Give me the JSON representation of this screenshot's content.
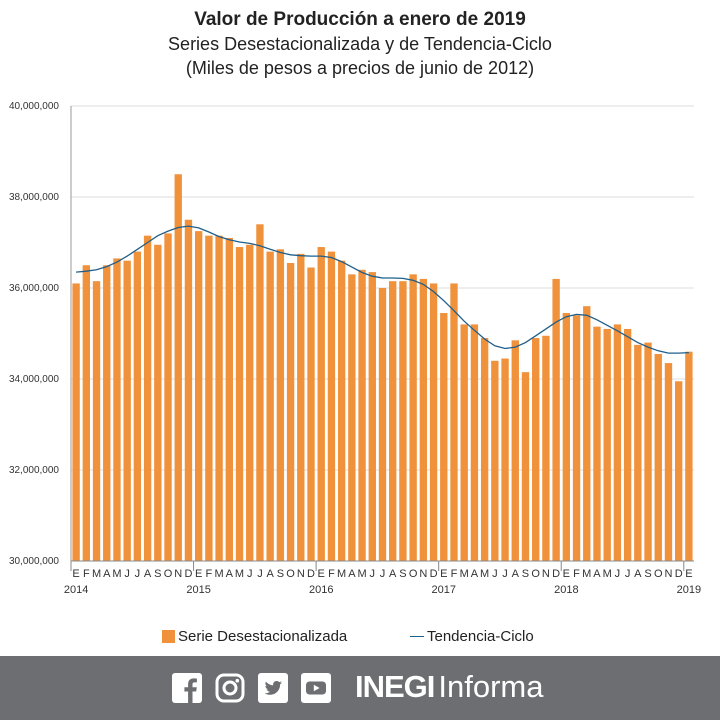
{
  "header": {
    "title": "Valor de Producción a enero de 2019",
    "subtitle1": "Series Desestacionalizada y de Tendencia-Ciclo",
    "subtitle2": "(Miles de pesos a precios de junio de 2012)"
  },
  "legend": {
    "bar_label": "Serie Desestacionalizada",
    "line_label": "Tendencia-Ciclo"
  },
  "footer": {
    "brand_bold": "INEGI",
    "brand_regular": "Informa",
    "icons": [
      "facebook-icon",
      "instagram-icon",
      "twitter-icon",
      "youtube-icon"
    ]
  },
  "colors": {
    "bar": "#f0913b",
    "line": "#1f5f8b",
    "footer_bg": "#6d6e71"
  },
  "chart_data": {
    "type": "bar",
    "ylim": [
      30000000,
      40000000
    ],
    "yticks": [
      30000000,
      32000000,
      34000000,
      36000000,
      38000000,
      40000000
    ],
    "ytick_labels": [
      "30,000,000",
      "32,000,000",
      "34,000,000",
      "36,000,000",
      "38,000,000",
      "40,000,000"
    ],
    "month_labels": [
      "E",
      "F",
      "M",
      "A",
      "M",
      "J",
      "J",
      "A",
      "S",
      "O",
      "N",
      "D"
    ],
    "year_labels": [
      {
        "index": 0,
        "label": "2014"
      },
      {
        "index": 12,
        "label": "2015"
      },
      {
        "index": 24,
        "label": "2016"
      },
      {
        "index": 36,
        "label": "2017"
      },
      {
        "index": 48,
        "label": "2018"
      },
      {
        "index": 60,
        "label": "2019"
      }
    ],
    "categories": [
      "2014-01",
      "2014-02",
      "2014-03",
      "2014-04",
      "2014-05",
      "2014-06",
      "2014-07",
      "2014-08",
      "2014-09",
      "2014-10",
      "2014-11",
      "2014-12",
      "2015-01",
      "2015-02",
      "2015-03",
      "2015-04",
      "2015-05",
      "2015-06",
      "2015-07",
      "2015-08",
      "2015-09",
      "2015-10",
      "2015-11",
      "2015-12",
      "2016-01",
      "2016-02",
      "2016-03",
      "2016-04",
      "2016-05",
      "2016-06",
      "2016-07",
      "2016-08",
      "2016-09",
      "2016-10",
      "2016-11",
      "2016-12",
      "2017-01",
      "2017-02",
      "2017-03",
      "2017-04",
      "2017-05",
      "2017-06",
      "2017-07",
      "2017-08",
      "2017-09",
      "2017-10",
      "2017-11",
      "2017-12",
      "2018-01",
      "2018-02",
      "2018-03",
      "2018-04",
      "2018-05",
      "2018-06",
      "2018-07",
      "2018-08",
      "2018-09",
      "2018-10",
      "2018-11",
      "2018-12",
      "2019-01"
    ],
    "series": [
      {
        "name": "Serie Desestacionalizada",
        "type": "bar",
        "values": [
          36100000,
          36500000,
          36150000,
          36500000,
          36650000,
          36600000,
          36800000,
          37150000,
          36950000,
          37200000,
          38500000,
          37500000,
          37250000,
          37150000,
          37150000,
          37100000,
          36900000,
          36950000,
          37400000,
          36800000,
          36850000,
          36550000,
          36750000,
          36450000,
          36900000,
          36800000,
          36600000,
          36300000,
          36400000,
          36350000,
          36000000,
          36150000,
          36150000,
          36300000,
          36200000,
          36100000,
          35450000,
          36100000,
          35200000,
          35200000,
          34900000,
          34400000,
          34450000,
          34850000,
          34150000,
          34900000,
          34950000,
          36200000,
          35450000,
          35400000,
          35600000,
          35150000,
          35100000,
          35200000,
          35100000,
          34750000,
          34800000,
          34550000,
          34350000,
          33950000,
          34600000
        ]
      },
      {
        "name": "Tendencia-Ciclo",
        "type": "line",
        "values": [
          36350000,
          36370000,
          36400000,
          36470000,
          36570000,
          36700000,
          36850000,
          37000000,
          37150000,
          37250000,
          37330000,
          37360000,
          37320000,
          37230000,
          37130000,
          37060000,
          37010000,
          36980000,
          36930000,
          36850000,
          36780000,
          36730000,
          36710000,
          36700000,
          36700000,
          36670000,
          36580000,
          36460000,
          36340000,
          36260000,
          36220000,
          36220000,
          36210000,
          36170000,
          36080000,
          35920000,
          35720000,
          35500000,
          35270000,
          35070000,
          34880000,
          34730000,
          34670000,
          34700000,
          34800000,
          34950000,
          35100000,
          35250000,
          35370000,
          35420000,
          35400000,
          35300000,
          35180000,
          35060000,
          34930000,
          34800000,
          34700000,
          34620000,
          34570000,
          34570000,
          34580000
        ]
      }
    ]
  }
}
